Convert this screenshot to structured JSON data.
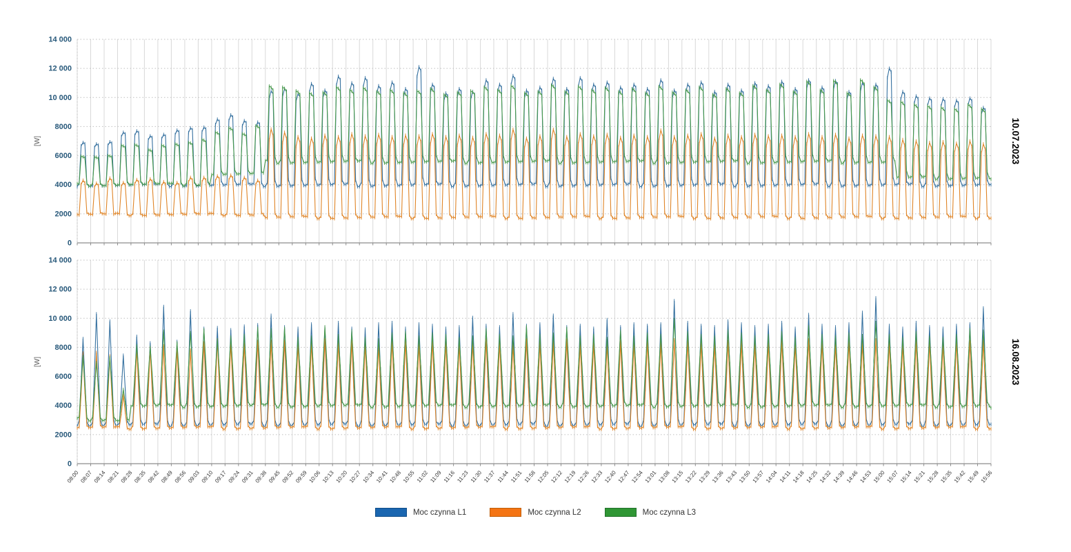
{
  "page": {
    "background": "#ffffff"
  },
  "chart_data": {
    "type": "line",
    "x_categories": [
      "08:00",
      "08:07",
      "08:14",
      "08:21",
      "08:28",
      "08:35",
      "08:42",
      "08:49",
      "08:56",
      "09:03",
      "09:10",
      "09:17",
      "09:24",
      "09:31",
      "09:38",
      "09:45",
      "09:52",
      "09:59",
      "10:06",
      "10:13",
      "10:20",
      "10:27",
      "10:34",
      "10:41",
      "10:48",
      "10:55",
      "11:02",
      "11:09",
      "11:16",
      "11:23",
      "11:30",
      "11:37",
      "11:44",
      "11:51",
      "11:58",
      "12:05",
      "12:12",
      "12:19",
      "12:26",
      "12:33",
      "12:40",
      "12:47",
      "12:54",
      "13:01",
      "13:08",
      "13:15",
      "13:22",
      "13:29",
      "13:36",
      "13:43",
      "13:50",
      "13:57",
      "14:04",
      "14:11",
      "14:18",
      "14:25",
      "14:32",
      "14:39",
      "14:46",
      "14:53",
      "15:00",
      "15:07",
      "15:14",
      "15:21",
      "15:28",
      "15:35",
      "15:42",
      "15:49",
      "15:56"
    ],
    "ylabel": "[W]",
    "ylim": [
      0,
      14000
    ],
    "ytick_step": 2000,
    "ytick_labels_topdown": [
      "14 000",
      "12 000",
      "10 000",
      "8000",
      "6000",
      "4000",
      "2000",
      "0"
    ],
    "grid": {
      "vertical": "solid",
      "horizontal": "dotted"
    },
    "legend_position": "bottom-center",
    "axis_colors": {
      "ytick_label": "#27587a",
      "xtick_label": "#333333",
      "grid_vertical": "#d8d8d8",
      "grid_horizontal": "#bfbfbf",
      "axis_line": "#8c8c8c",
      "title": "#000000"
    },
    "series_meta": [
      {
        "name": "Moc czynna L1",
        "line_color": "#35709f",
        "legend_color": "#1a66b0",
        "legend_border": "#0f4c87"
      },
      {
        "name": "Moc czynna L2",
        "line_color": "#df8426",
        "legend_color": "#f47413",
        "legend_border": "#bf5e08"
      },
      {
        "name": "Moc czynna L3",
        "line_color": "#47984a",
        "legend_color": "#2f9634",
        "legend_border": "#20702a"
      }
    ],
    "charts": [
      {
        "title": "10.07.2023",
        "shape_profiles": [
          [
            0,
            0.02,
            0.92,
            1,
            0.97,
            0.06,
            0
          ],
          [
            0,
            0,
            0.88,
            1,
            0.93,
            0.04,
            0
          ],
          [
            0.02,
            0.04,
            1,
            0.985,
            0.95,
            0.1,
            0.02
          ]
        ],
        "series": [
          {
            "name": "Moc czynna L1",
            "baseline_segments": [
              [
                0,
                67,
                3950
              ]
            ],
            "peaks": [
              6900,
              6800,
              6950,
              7600,
              7700,
              7350,
              7450,
              7750,
              7900,
              7950,
              8500,
              8800,
              8400,
              8300,
              10450,
              10600,
              10250,
              10950,
              10500,
              11450,
              11000,
              11350,
              10800,
              11050,
              10600,
              12100,
              10900,
              10300,
              10600,
              10400,
              11200,
              10900,
              11500,
              10500,
              10700,
              11300,
              10600,
              11350,
              10900,
              11050,
              10700,
              10900,
              10600,
              11200,
              10500,
              10900,
              11050,
              10400,
              10900,
              10500,
              11000,
              10800,
              11100,
              10600,
              11200,
              10700,
              11150,
              10400,
              11000,
              10900,
              12000,
              10400,
              10100,
              9950,
              9900,
              9800,
              9950,
              9300
            ]
          },
          {
            "name": "Moc czynna L2",
            "baseline_segments": [
              [
                0,
                13,
                1950
              ],
              [
                14,
                67,
                1750
              ]
            ],
            "peaks": [
              4300,
              4100,
              4450,
              4150,
              4350,
              4400,
              4200,
              4150,
              4500,
              4500,
              4600,
              4650,
              4500,
              4300,
              7820,
              7600,
              7300,
              7200,
              7400,
              7300,
              7500,
              7350,
              7450,
              7300,
              7400,
              7350,
              7500,
              7300,
              7400,
              7250,
              7500,
              7400,
              7800,
              7200,
              7350,
              7800,
              7300,
              7500,
              7350,
              7450,
              7250,
              7400,
              7300,
              7750,
              7300,
              7400,
              7500,
              7200,
              7400,
              7300,
              7450,
              7350,
              7400,
              7300,
              7500,
              7300,
              7450,
              7200,
              7400,
              7350,
              7300,
              7100,
              7000,
              6900,
              6950,
              6850,
              7000,
              6800
            ]
          },
          {
            "name": "Moc czynna L3",
            "baseline_segments": [
              [
                0,
                9,
                3950
              ],
              [
                10,
                13,
                4650
              ],
              [
                14,
                60,
                5450
              ],
              [
                61,
                67,
                4350
              ]
            ],
            "peaks": [
              5950,
              5900,
              6000,
              6700,
              6750,
              6400,
              6700,
              6800,
              6900,
              7100,
              7600,
              7900,
              7500,
              8050,
              10780,
              10700,
              10450,
              10300,
              10350,
              10700,
              10500,
              10650,
              10400,
              10500,
              10300,
              10450,
              10600,
              10200,
              10350,
              10450,
              10700,
              10500,
              10800,
              10300,
              10400,
              10850,
              10400,
              10750,
              10500,
              10650,
              10400,
              10600,
              10300,
              10750,
              10350,
              10500,
              10700,
              10200,
              10600,
              10300,
              10800,
              10500,
              10900,
              10400,
              11100,
              10500,
              11150,
              10300,
              11200,
              10700,
              9800,
              9700,
              9500,
              9400,
              9300,
              9200,
              9500,
              9200
            ]
          }
        ]
      },
      {
        "title": "16.08.2023",
        "shape_profiles": [
          [
            0,
            0.04,
            0.5,
            1,
            0.52,
            0.05,
            0
          ],
          [
            0,
            0.02,
            0.45,
            1,
            0.48,
            0.03,
            0
          ],
          [
            0.03,
            0.06,
            0.55,
            1,
            0.58,
            0.08,
            0.03
          ]
        ],
        "series": [
          {
            "name": "Moc czynna L1",
            "baseline_segments": [
              [
                0,
                67,
                2650
              ]
            ],
            "peaks": [
              8600,
              10300,
              9800,
              7450,
              8750,
              8300,
              10800,
              8400,
              10500,
              9300,
              9350,
              9200,
              9450,
              9550,
              10200,
              9400,
              9300,
              9600,
              9350,
              9700,
              9300,
              9250,
              9600,
              9700,
              9300,
              9600,
              9500,
              9300,
              9400,
              10050,
              9500,
              9400,
              10300,
              9500,
              9600,
              10200,
              9400,
              9500,
              9300,
              9900,
              9400,
              9600,
              9500,
              9600,
              11200,
              9700,
              9500,
              9400,
              9800,
              9600,
              9400,
              9500,
              9700,
              9300,
              10250,
              9500,
              9400,
              9600,
              10400,
              11400,
              9500,
              9300,
              9700,
              9400,
              9300,
              9500,
              9600,
              10700
            ]
          },
          {
            "name": "Moc czynna L2",
            "baseline_segments": [
              [
                0,
                67,
                2450
              ]
            ],
            "peaks": [
              7600,
              7650,
              7400,
              4700,
              7900,
              7900,
              8100,
              7900,
              7800,
              8300,
              8500,
              8300,
              8200,
              8400,
              8400,
              8400,
              8200,
              8300,
              8500,
              8300,
              8400,
              8200,
              8100,
              8400,
              8400,
              8200,
              8400,
              8300,
              8200,
              8300,
              8500,
              8300,
              8200,
              8500,
              8300,
              8400,
              8500,
              8200,
              8300,
              8200,
              8400,
              8300,
              8400,
              8300,
              8500,
              8400,
              8300,
              8200,
              8400,
              8300,
              8200,
              8300,
              8400,
              8200,
              8500,
              8300,
              8200,
              8400,
              8300,
              8500,
              8300,
              8200,
              8400,
              8300,
              8200,
              8400,
              8400,
              8450
            ]
          },
          {
            "name": "Moc czynna L3",
            "baseline_segments": [
              [
                0,
                3,
                2900
              ],
              [
                4,
                67,
                3800
              ]
            ],
            "peaks": [
              7350,
              6950,
              7300,
              5100,
              8100,
              8000,
              9100,
              8300,
              9000,
              9200,
              8500,
              8700,
              8800,
              9300,
              9200,
              9300,
              8600,
              8700,
              9400,
              8800,
              9100,
              8600,
              8500,
              8900,
              9000,
              8700,
              8900,
              8800,
              8600,
              8700,
              9200,
              8800,
              8700,
              9400,
              8800,
              8900,
              9300,
              8700,
              8800,
              8600,
              9100,
              8700,
              8900,
              8800,
              9900,
              9000,
              8800,
              8700,
              9100,
              8900,
              8700,
              8800,
              9000,
              8600,
              9400,
              8800,
              8700,
              8900,
              8800,
              9700,
              8800,
              8600,
              9000,
              8700,
              8600,
              8800,
              9200,
              9100
            ]
          }
        ]
      }
    ]
  },
  "legend": {
    "items": [
      {
        "label": "Moc czynna L1"
      },
      {
        "label": "Moc czynna L2"
      },
      {
        "label": "Moc czynna L3"
      }
    ]
  }
}
